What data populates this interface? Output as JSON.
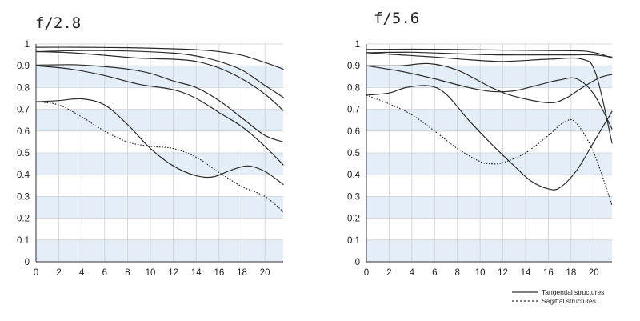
{
  "chart_data": [
    {
      "type": "line",
      "title": "f/2.8",
      "xlabel": "",
      "ylabel": "",
      "xlim": [
        0,
        21.6
      ],
      "ylim": [
        0,
        1
      ],
      "x_ticks": [
        "0",
        "2",
        "4",
        "6",
        "8",
        "10",
        "12",
        "14",
        "16",
        "18",
        "20"
      ],
      "y_ticks": [
        "0",
        "0.1",
        "0.2",
        "0.3",
        "0.4",
        "0.5",
        "0.6",
        "0.7",
        "0.8",
        "0.9",
        "1"
      ],
      "grid": true,
      "band_color": "#e4eef9",
      "series": [
        {
          "style": "solid",
          "points": [
            [
              0,
              0.985
            ],
            [
              4,
              0.985
            ],
            [
              8,
              0.983
            ],
            [
              12,
              0.978
            ],
            [
              14,
              0.974
            ],
            [
              16,
              0.965
            ],
            [
              18,
              0.948
            ],
            [
              20,
              0.915
            ],
            [
              21.6,
              0.885
            ]
          ]
        },
        {
          "style": "solid",
          "points": [
            [
              0,
              0.965
            ],
            [
              4,
              0.97
            ],
            [
              8,
              0.968
            ],
            [
              12,
              0.958
            ],
            [
              14,
              0.945
            ],
            [
              16,
              0.92
            ],
            [
              18,
              0.88
            ],
            [
              20,
              0.81
            ],
            [
              21.6,
              0.755
            ]
          ]
        },
        {
          "style": "solid",
          "points": [
            [
              0,
              0.965
            ],
            [
              3,
              0.96
            ],
            [
              6,
              0.948
            ],
            [
              9,
              0.935
            ],
            [
              12,
              0.93
            ],
            [
              14,
              0.92
            ],
            [
              16,
              0.89
            ],
            [
              18,
              0.84
            ],
            [
              20,
              0.77
            ],
            [
              21.6,
              0.695
            ]
          ]
        },
        {
          "style": "solid",
          "points": [
            [
              0,
              0.903
            ],
            [
              3,
              0.905
            ],
            [
              5,
              0.9
            ],
            [
              8,
              0.885
            ],
            [
              10,
              0.865
            ],
            [
              12,
              0.83
            ],
            [
              14,
              0.8
            ],
            [
              16,
              0.74
            ],
            [
              18,
              0.66
            ],
            [
              20,
              0.58
            ],
            [
              21.6,
              0.55
            ]
          ]
        },
        {
          "style": "solid",
          "points": [
            [
              0,
              0.9
            ],
            [
              3,
              0.885
            ],
            [
              6,
              0.855
            ],
            [
              9,
              0.815
            ],
            [
              12,
              0.79
            ],
            [
              14,
              0.75
            ],
            [
              16,
              0.685
            ],
            [
              18,
              0.62
            ],
            [
              20,
              0.53
            ],
            [
              21.6,
              0.445
            ]
          ]
        },
        {
          "style": "solid",
          "points": [
            [
              0,
              0.735
            ],
            [
              2,
              0.74
            ],
            [
              4,
              0.748
            ],
            [
              6,
              0.72
            ],
            [
              8,
              0.63
            ],
            [
              10,
              0.52
            ],
            [
              12,
              0.44
            ],
            [
              14,
              0.395
            ],
            [
              15.5,
              0.39
            ],
            [
              17,
              0.42
            ],
            [
              18.5,
              0.44
            ],
            [
              20,
              0.415
            ],
            [
              21.6,
              0.355
            ]
          ]
        },
        {
          "style": "dotted",
          "points": [
            [
              0,
              0.735
            ],
            [
              2,
              0.72
            ],
            [
              4,
              0.665
            ],
            [
              6,
              0.6
            ],
            [
              8,
              0.55
            ],
            [
              10,
              0.53
            ],
            [
              12,
              0.52
            ],
            [
              14,
              0.48
            ],
            [
              16,
              0.41
            ],
            [
              18,
              0.345
            ],
            [
              20,
              0.3
            ],
            [
              21.6,
              0.23
            ]
          ]
        }
      ]
    },
    {
      "type": "line",
      "title": "f/5.6",
      "xlabel": "",
      "ylabel": "",
      "xlim": [
        0,
        21.6
      ],
      "ylim": [
        0,
        1
      ],
      "x_ticks": [
        "0",
        "2",
        "4",
        "6",
        "8",
        "10",
        "12",
        "14",
        "16",
        "18",
        "20"
      ],
      "y_ticks": [
        "0",
        "0.1",
        "0.2",
        "0.3",
        "0.4",
        "0.5",
        "0.6",
        "0.7",
        "0.8",
        "0.9",
        "1"
      ],
      "grid": true,
      "band_color": "#e4eef9",
      "series": [
        {
          "style": "solid",
          "points": [
            [
              0,
              0.975
            ],
            [
              4,
              0.976
            ],
            [
              8,
              0.975
            ],
            [
              12,
              0.972
            ],
            [
              16,
              0.97
            ],
            [
              19,
              0.968
            ],
            [
              20.5,
              0.955
            ],
            [
              21.6,
              0.935
            ]
          ]
        },
        {
          "style": "solid",
          "points": [
            [
              0,
              0.96
            ],
            [
              4,
              0.962
            ],
            [
              8,
              0.955
            ],
            [
              12,
              0.95
            ],
            [
              16,
              0.95
            ],
            [
              18,
              0.95
            ],
            [
              20,
              0.95
            ],
            [
              21.6,
              0.94
            ]
          ]
        },
        {
          "style": "solid",
          "points": [
            [
              0,
              0.96
            ],
            [
              3,
              0.95
            ],
            [
              6,
              0.94
            ],
            [
              9,
              0.928
            ],
            [
              12,
              0.92
            ],
            [
              16,
              0.93
            ],
            [
              19,
              0.93
            ],
            [
              20.2,
              0.86
            ],
            [
              21.6,
              0.545
            ]
          ]
        },
        {
          "style": "solid",
          "points": [
            [
              0,
              0.9
            ],
            [
              3,
              0.9
            ],
            [
              5.5,
              0.91
            ],
            [
              8,
              0.88
            ],
            [
              11,
              0.8
            ],
            [
              13,
              0.76
            ],
            [
              16,
              0.73
            ],
            [
              17.5,
              0.75
            ],
            [
              19,
              0.8
            ],
            [
              20.5,
              0.845
            ],
            [
              21.6,
              0.86
            ]
          ]
        },
        {
          "style": "solid",
          "points": [
            [
              0,
              0.9
            ],
            [
              3,
              0.875
            ],
            [
              6,
              0.84
            ],
            [
              9,
              0.8
            ],
            [
              11,
              0.782
            ],
            [
              13,
              0.785
            ],
            [
              15,
              0.81
            ],
            [
              17,
              0.835
            ],
            [
              18.5,
              0.84
            ],
            [
              20,
              0.77
            ],
            [
              21.6,
              0.61
            ]
          ]
        },
        {
          "style": "solid",
          "points": [
            [
              0,
              0.765
            ],
            [
              2,
              0.775
            ],
            [
              3.5,
              0.8
            ],
            [
              5.5,
              0.808
            ],
            [
              7,
              0.77
            ],
            [
              9,
              0.65
            ],
            [
              11,
              0.54
            ],
            [
              13,
              0.44
            ],
            [
              14.5,
              0.37
            ],
            [
              16,
              0.335
            ],
            [
              17,
              0.34
            ],
            [
              18.5,
              0.42
            ],
            [
              20,
              0.55
            ],
            [
              21.6,
              0.69
            ]
          ]
        },
        {
          "style": "dotted",
          "points": [
            [
              0,
              0.765
            ],
            [
              2,
              0.725
            ],
            [
              4,
              0.675
            ],
            [
              6,
              0.6
            ],
            [
              8,
              0.52
            ],
            [
              10,
              0.46
            ],
            [
              11,
              0.45
            ],
            [
              12,
              0.455
            ],
            [
              14,
              0.5
            ],
            [
              16,
              0.58
            ],
            [
              17.5,
              0.645
            ],
            [
              18.5,
              0.635
            ],
            [
              20,
              0.5
            ],
            [
              21.6,
              0.26
            ]
          ]
        }
      ]
    }
  ],
  "legend": {
    "placement": "bottom-right",
    "tangential": "Tangential structures",
    "sagittal": "Sagittal structures"
  }
}
